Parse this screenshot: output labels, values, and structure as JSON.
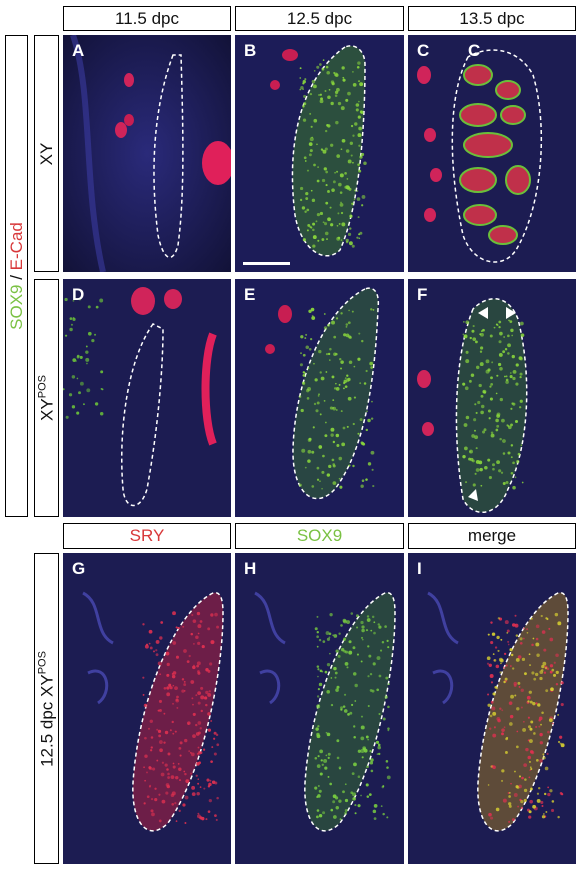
{
  "columns": [
    "11.5 dpc",
    "12.5 dpc",
    "13.5 dpc"
  ],
  "bottom_columns": [
    "SRY",
    "SOX9",
    "merge"
  ],
  "bottom_column_colors": [
    "#d8383a",
    "#7ac143",
    "#111111"
  ],
  "stain_label": {
    "green": "SOX9",
    "sep": " / ",
    "red": "E-Cad",
    "green_color": "#7ac143",
    "red_color": "#d8383a"
  },
  "rows": {
    "xy": "XY",
    "xypos_base": "XY",
    "xypos_sup": "POS"
  },
  "bottom_row": {
    "text": "12.5 dpc XY",
    "sup": "POS"
  },
  "panels": {
    "A": "A",
    "B": "B",
    "C": "C",
    "C2": "C",
    "D": "D",
    "E": "E",
    "F": "F",
    "G": "G",
    "H": "H",
    "I": "I"
  }
}
